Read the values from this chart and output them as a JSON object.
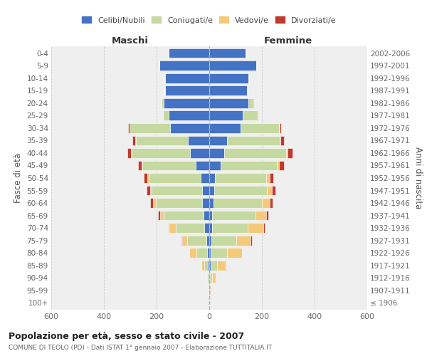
{
  "age_groups": [
    "100+",
    "95-99",
    "90-94",
    "85-89",
    "80-84",
    "75-79",
    "70-74",
    "65-69",
    "60-64",
    "55-59",
    "50-54",
    "45-49",
    "40-44",
    "35-39",
    "30-34",
    "25-29",
    "20-24",
    "15-19",
    "10-14",
    "5-9",
    "0-4"
  ],
  "birth_years": [
    "≤ 1906",
    "1907-1911",
    "1912-1916",
    "1917-1921",
    "1922-1926",
    "1927-1931",
    "1932-1936",
    "1937-1941",
    "1942-1946",
    "1947-1951",
    "1952-1956",
    "1957-1961",
    "1962-1966",
    "1967-1971",
    "1972-1976",
    "1977-1981",
    "1982-1986",
    "1987-1991",
    "1992-1996",
    "1997-2001",
    "2002-2006"
  ],
  "male_celibinubili": [
    1,
    2,
    3,
    5,
    8,
    12,
    18,
    22,
    26,
    28,
    32,
    52,
    72,
    82,
    148,
    153,
    172,
    168,
    168,
    188,
    153
  ],
  "male_coniugati": [
    0,
    1,
    4,
    15,
    42,
    72,
    108,
    150,
    178,
    192,
    198,
    202,
    222,
    196,
    155,
    22,
    8,
    2,
    1,
    2,
    1
  ],
  "male_vedovi": [
    0,
    1,
    3,
    10,
    25,
    20,
    25,
    15,
    10,
    5,
    5,
    3,
    2,
    2,
    1,
    0,
    0,
    0,
    0,
    0,
    0
  ],
  "male_divorziati": [
    0,
    0,
    0,
    1,
    2,
    2,
    3,
    8,
    10,
    12,
    14,
    12,
    15,
    12,
    5,
    2,
    1,
    0,
    0,
    0,
    0
  ],
  "female_celibinubili": [
    1,
    2,
    3,
    5,
    6,
    8,
    10,
    12,
    15,
    18,
    22,
    42,
    58,
    68,
    118,
    128,
    148,
    143,
    148,
    178,
    138
  ],
  "female_coniugati": [
    0,
    2,
    8,
    25,
    62,
    95,
    135,
    165,
    185,
    200,
    195,
    215,
    235,
    200,
    148,
    52,
    18,
    4,
    4,
    4,
    2
  ],
  "female_vedovi": [
    0,
    3,
    12,
    30,
    55,
    55,
    60,
    40,
    30,
    20,
    12,
    8,
    4,
    3,
    2,
    1,
    0,
    0,
    0,
    0,
    0
  ],
  "female_divorziati": [
    0,
    0,
    1,
    2,
    2,
    4,
    5,
    8,
    10,
    14,
    15,
    20,
    20,
    12,
    5,
    2,
    1,
    0,
    0,
    0,
    0
  ],
  "color_celibi": "#4472c4",
  "color_coniugati": "#c5d9a0",
  "color_vedovi": "#f5c97a",
  "color_divorziati": "#c0392b",
  "title": "Popolazione per età, sesso e stato civile - 2007",
  "subtitle": "COMUNE DI TEOLO (PD) - Dati ISTAT 1° gennaio 2007 - Elaborazione TUTTITALIA.IT",
  "label_maschi": "Maschi",
  "label_femmine": "Femmine",
  "ylabel_left": "Fasce di età",
  "ylabel_right": "Anni di nascita",
  "legend_labels": [
    "Celibi/Nubili",
    "Coniugati/e",
    "Vedovi/e",
    "Divorziati/e"
  ],
  "bg_color": "#efefef",
  "xlim": 600
}
